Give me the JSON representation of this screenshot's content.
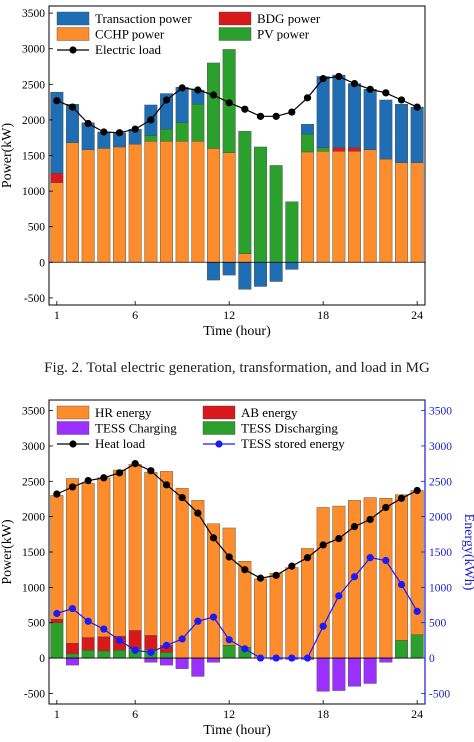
{
  "captions": {
    "fig2": "Fig. 2.   Total electric generation, transformation, and load in MG"
  },
  "colors": {
    "transaction": "#1f6eb4",
    "bdg": "#d7191c",
    "cchp": "#fd8d2c",
    "pv": "#2ca02c",
    "electric_load": "#000000",
    "hr": "#fd8d2c",
    "ab": "#d7191c",
    "tess_ch": "#9b30ff",
    "tess_dis": "#2ca02c",
    "heat_load": "#000000",
    "tess_stored": "#1a1aff",
    "right_axis": "#1a1acc"
  },
  "chart_data": [
    {
      "type": "bar",
      "stacked": true,
      "xlabel": "Time (hour)",
      "ylabel": "Power(kW)",
      "ylim": [
        -600,
        3600
      ],
      "yticks": [
        -500,
        0,
        500,
        1000,
        1500,
        2000,
        2500,
        3000,
        3500
      ],
      "xticks": [
        1,
        6,
        12,
        18,
        24
      ],
      "x": [
        1,
        2,
        3,
        4,
        5,
        6,
        7,
        8,
        9,
        10,
        11,
        12,
        13,
        14,
        15,
        16,
        17,
        18,
        19,
        20,
        21,
        22,
        23,
        24
      ],
      "legend": {
        "placement": "top-left",
        "columns": 2
      },
      "series": [
        {
          "name": "CCHP power",
          "key": "cchp",
          "values": [
            1120,
            1680,
            1580,
            1600,
            1620,
            1660,
            1700,
            1700,
            1700,
            1700,
            1600,
            1540,
            120,
            0,
            0,
            0,
            1550,
            1560,
            1560,
            1560,
            1580,
            1450,
            1400,
            1400
          ]
        },
        {
          "name": "BDG power",
          "key": "bdg",
          "values": [
            130,
            0,
            0,
            0,
            0,
            0,
            0,
            0,
            0,
            0,
            0,
            0,
            0,
            0,
            0,
            0,
            0,
            0,
            50,
            50,
            0,
            0,
            0,
            0
          ]
        },
        {
          "name": "PV power",
          "key": "pv",
          "values": [
            0,
            0,
            0,
            0,
            0,
            0,
            80,
            170,
            260,
            520,
            1200,
            1450,
            1720,
            1620,
            1360,
            850,
            250,
            50,
            0,
            0,
            0,
            0,
            0,
            0
          ]
        },
        {
          "name": "Transaction power",
          "key": "transaction",
          "values": [
            1140,
            540,
            380,
            230,
            200,
            210,
            430,
            500,
            500,
            200,
            -250,
            -180,
            -380,
            -340,
            -270,
            -100,
            140,
            1000,
            1020,
            900,
            850,
            830,
            820,
            780
          ]
        }
      ],
      "line": {
        "name": "Electric load",
        "key": "electric_load",
        "values": [
          2270,
          2180,
          1950,
          1830,
          1820,
          1870,
          2000,
          2280,
          2450,
          2420,
          2350,
          2240,
          2150,
          2050,
          2050,
          2110,
          2310,
          2580,
          2610,
          2510,
          2430,
          2380,
          2280,
          2180
        ]
      }
    },
    {
      "type": "bar",
      "stacked": true,
      "xlabel": "Time (hour)",
      "ylabel": "Power(kW)",
      "y2label": "Energy(kWh)",
      "ylim": [
        -650,
        3650
      ],
      "yticks": [
        -500,
        0,
        500,
        1000,
        1500,
        2000,
        2500,
        3000,
        3500
      ],
      "y2ticks": [
        -500,
        0,
        500,
        1000,
        1500,
        2000,
        2500,
        3000,
        3500
      ],
      "xticks": [
        1,
        6,
        12,
        18,
        24
      ],
      "x": [
        1,
        2,
        3,
        4,
        5,
        6,
        7,
        8,
        9,
        10,
        11,
        12,
        13,
        14,
        15,
        16,
        17,
        18,
        19,
        20,
        21,
        22,
        23,
        24
      ],
      "legend": {
        "placement": "top-left",
        "columns": 2
      },
      "series": [
        {
          "name": "TESS Discharging",
          "key": "tess_dis",
          "values": [
            500,
            60,
            110,
            100,
            110,
            130,
            120,
            80,
            0,
            0,
            0,
            180,
            150,
            0,
            0,
            0,
            0,
            0,
            0,
            0,
            0,
            0,
            250,
            330
          ]
        },
        {
          "name": "AB energy",
          "key": "ab",
          "values": [
            50,
            150,
            180,
            200,
            200,
            260,
            200,
            100,
            0,
            0,
            0,
            0,
            0,
            0,
            0,
            0,
            0,
            0,
            0,
            0,
            0,
            0,
            0,
            0
          ]
        },
        {
          "name": "HR energy",
          "key": "hr",
          "values": [
            1750,
            2330,
            2180,
            2250,
            2350,
            2350,
            2310,
            2460,
            2400,
            2230,
            1900,
            1660,
            1220,
            1120,
            1200,
            1280,
            1550,
            2130,
            2150,
            2230,
            2270,
            2260,
            2060,
            2040
          ]
        },
        {
          "name": "TESS Charging",
          "key": "tess_ch",
          "values": [
            0,
            -100,
            0,
            0,
            0,
            0,
            -60,
            -100,
            -150,
            -260,
            -60,
            0,
            0,
            0,
            -20,
            -20,
            -20,
            -470,
            -460,
            -400,
            -360,
            -60,
            0,
            0
          ]
        }
      ],
      "lines": [
        {
          "name": "Heat load",
          "key": "heat_load",
          "axis": "left",
          "values": [
            2320,
            2420,
            2510,
            2550,
            2620,
            2750,
            2650,
            2450,
            2270,
            2050,
            1700,
            1430,
            1250,
            1130,
            1170,
            1300,
            1420,
            1600,
            1690,
            1860,
            1960,
            2130,
            2260,
            2370
          ]
        },
        {
          "name": "TESS stored energy",
          "key": "tess_stored",
          "axis": "right",
          "values": [
            630,
            700,
            520,
            410,
            250,
            110,
            80,
            180,
            270,
            520,
            580,
            260,
            130,
            0,
            0,
            0,
            0,
            450,
            880,
            1150,
            1420,
            1380,
            1040,
            660
          ]
        }
      ]
    }
  ]
}
